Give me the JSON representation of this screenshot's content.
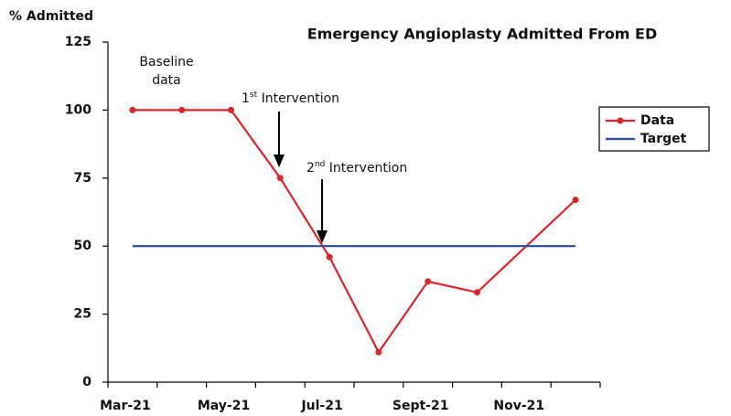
{
  "chart_data": {
    "type": "line",
    "title": "Emergency Angioplasty Admitted From ED",
    "y_label": "% Admitted",
    "categories": [
      "Mar-21",
      null,
      "May-21",
      null,
      "Jul-21",
      null,
      "Sept-21",
      null,
      "Nov-21",
      null
    ],
    "series": [
      {
        "name": "Data",
        "color": "#d9262c",
        "markers": true,
        "values": [
          100,
          100,
          100,
          75,
          46,
          11,
          37,
          33,
          null,
          67
        ]
      },
      {
        "name": "Target",
        "color": "#2b4a9b",
        "markers": false,
        "values": [
          50,
          50,
          50,
          50,
          50,
          50,
          50,
          50,
          50,
          50
        ]
      }
    ],
    "span_gaps": true,
    "ylim": [
      0,
      125
    ],
    "yticks": [
      0,
      25,
      50,
      75,
      100,
      125
    ],
    "grid": false,
    "legend": "right",
    "annotations": [
      {
        "lines": [
          "Baseline",
          "data"
        ]
      },
      {
        "num": "1",
        "sup": "st",
        "rest": " Intervention"
      },
      {
        "num": "2",
        "sup": "nd",
        "rest": " Intervention"
      }
    ]
  }
}
